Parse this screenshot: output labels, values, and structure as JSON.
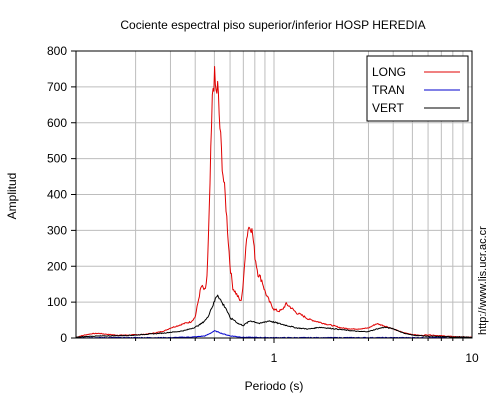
{
  "chart_data": {
    "type": "line",
    "title": "Cociente espectral piso superior/inferior  HOSP HEREDIA",
    "xlabel": "Periodo (s)",
    "ylabel": "Amplitud",
    "xscale": "log",
    "xlim": [
      0.1,
      10
    ],
    "ylim": [
      0,
      800
    ],
    "x_major_ticks": [
      1,
      10
    ],
    "y_ticks": [
      0,
      100,
      200,
      300,
      400,
      500,
      600,
      700,
      800
    ],
    "grid": true,
    "legend_position": "top-right",
    "side_text": "http://www.lis.ucr.ac.cr",
    "series": [
      {
        "name": "LONG",
        "color": "#e00000",
        "points": [
          [
            0.1,
            2
          ],
          [
            0.11,
            8
          ],
          [
            0.12,
            12
          ],
          [
            0.13,
            13
          ],
          [
            0.14,
            11
          ],
          [
            0.16,
            8
          ],
          [
            0.18,
            8
          ],
          [
            0.2,
            9
          ],
          [
            0.22,
            10
          ],
          [
            0.25,
            14
          ],
          [
            0.28,
            20
          ],
          [
            0.3,
            28
          ],
          [
            0.33,
            35
          ],
          [
            0.36,
            42
          ],
          [
            0.38,
            45
          ],
          [
            0.4,
            58
          ],
          [
            0.42,
            120
          ],
          [
            0.43,
            145
          ],
          [
            0.45,
            130
          ],
          [
            0.46,
            180
          ],
          [
            0.47,
            330
          ],
          [
            0.48,
            520
          ],
          [
            0.49,
            690
          ],
          [
            0.5,
            730
          ],
          [
            0.51,
            680
          ],
          [
            0.52,
            700
          ],
          [
            0.53,
            610
          ],
          [
            0.55,
            470
          ],
          [
            0.57,
            380
          ],
          [
            0.6,
            200
          ],
          [
            0.62,
            140
          ],
          [
            0.65,
            120
          ],
          [
            0.68,
            100
          ],
          [
            0.7,
            150
          ],
          [
            0.72,
            260
          ],
          [
            0.74,
            305
          ],
          [
            0.76,
            315
          ],
          [
            0.78,
            290
          ],
          [
            0.8,
            230
          ],
          [
            0.83,
            180
          ],
          [
            0.87,
            160
          ],
          [
            0.9,
            130
          ],
          [
            0.95,
            100
          ],
          [
            1.0,
            80
          ],
          [
            1.05,
            75
          ],
          [
            1.1,
            78
          ],
          [
            1.15,
            95
          ],
          [
            1.2,
            88
          ],
          [
            1.3,
            70
          ],
          [
            1.4,
            62
          ],
          [
            1.5,
            52
          ],
          [
            1.6,
            48
          ],
          [
            1.8,
            40
          ],
          [
            2.0,
            34
          ],
          [
            2.2,
            28
          ],
          [
            2.5,
            25
          ],
          [
            2.8,
            26
          ],
          [
            3.0,
            28
          ],
          [
            3.3,
            40
          ],
          [
            3.5,
            36
          ],
          [
            3.8,
            30
          ],
          [
            4.0,
            25
          ],
          [
            4.5,
            15
          ],
          [
            5.0,
            10
          ],
          [
            5.5,
            7
          ],
          [
            6.0,
            9
          ],
          [
            7.0,
            6
          ],
          [
            8.0,
            4
          ],
          [
            9.0,
            3
          ],
          [
            10.0,
            2
          ]
        ]
      },
      {
        "name": "TRAN",
        "color": "#0000cc",
        "points": [
          [
            0.1,
            1
          ],
          [
            0.15,
            1
          ],
          [
            0.2,
            1
          ],
          [
            0.3,
            1
          ],
          [
            0.4,
            3
          ],
          [
            0.45,
            6
          ],
          [
            0.48,
            14
          ],
          [
            0.5,
            20
          ],
          [
            0.52,
            17
          ],
          [
            0.55,
            12
          ],
          [
            0.6,
            6
          ],
          [
            0.7,
            2
          ],
          [
            1.0,
            1
          ],
          [
            2.0,
            1
          ],
          [
            5.0,
            1
          ],
          [
            10.0,
            1
          ]
        ]
      },
      {
        "name": "VERT",
        "color": "#000000",
        "points": [
          [
            0.1,
            2
          ],
          [
            0.12,
            5
          ],
          [
            0.15,
            6
          ],
          [
            0.18,
            7
          ],
          [
            0.2,
            8
          ],
          [
            0.22,
            10
          ],
          [
            0.25,
            12
          ],
          [
            0.28,
            14
          ],
          [
            0.3,
            16
          ],
          [
            0.33,
            18
          ],
          [
            0.36,
            22
          ],
          [
            0.4,
            30
          ],
          [
            0.43,
            40
          ],
          [
            0.46,
            55
          ],
          [
            0.48,
            80
          ],
          [
            0.5,
            100
          ],
          [
            0.51,
            115
          ],
          [
            0.52,
            122
          ],
          [
            0.53,
            112
          ],
          [
            0.55,
            95
          ],
          [
            0.57,
            85
          ],
          [
            0.6,
            55
          ],
          [
            0.63,
            50
          ],
          [
            0.66,
            40
          ],
          [
            0.7,
            35
          ],
          [
            0.73,
            42
          ],
          [
            0.76,
            48
          ],
          [
            0.8,
            45
          ],
          [
            0.85,
            40
          ],
          [
            0.9,
            45
          ],
          [
            0.95,
            48
          ],
          [
            1.0,
            44
          ],
          [
            1.1,
            38
          ],
          [
            1.2,
            33
          ],
          [
            1.3,
            28
          ],
          [
            1.5,
            25
          ],
          [
            1.7,
            30
          ],
          [
            2.0,
            26
          ],
          [
            2.3,
            22
          ],
          [
            2.7,
            18
          ],
          [
            3.0,
            18
          ],
          [
            3.3,
            25
          ],
          [
            3.6,
            30
          ],
          [
            4.0,
            26
          ],
          [
            4.5,
            14
          ],
          [
            5.0,
            8
          ],
          [
            6.0,
            5
          ],
          [
            8.0,
            3
          ],
          [
            10.0,
            2
          ]
        ]
      }
    ]
  }
}
